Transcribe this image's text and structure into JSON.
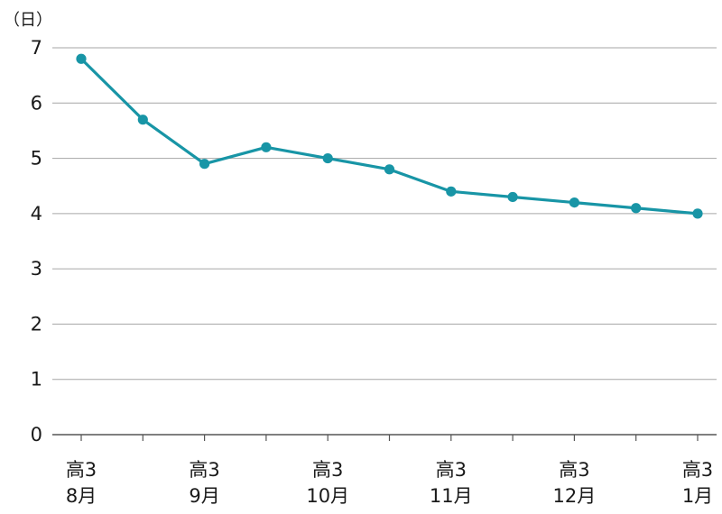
{
  "chart_data": {
    "type": "line",
    "y_unit_label": "（日）",
    "ylim": [
      0,
      7
    ],
    "yticks": [
      0,
      1,
      2,
      3,
      4,
      5,
      6,
      7
    ],
    "grid": true,
    "x": [
      "高3 8月",
      "",
      "高3 9月",
      "",
      "高3 10月",
      "",
      "高3 11月",
      "",
      "高3 12月",
      "",
      "高3 1月"
    ],
    "x_tick_labels": [
      [
        "高3",
        "8月"
      ],
      [
        "高3",
        "9月"
      ],
      [
        "高3",
        "10月"
      ],
      [
        "高3",
        "11月"
      ],
      [
        "高3",
        "12月"
      ],
      [
        "高3",
        "1月"
      ]
    ],
    "x_tick_label_positions": [
      0,
      2,
      4,
      6,
      8,
      10
    ],
    "series": [
      {
        "values": [
          6.8,
          5.7,
          4.9,
          5.2,
          5.0,
          4.8,
          4.4,
          4.3,
          4.2,
          4.1,
          4.0
        ]
      }
    ],
    "color": "#1895a6"
  }
}
